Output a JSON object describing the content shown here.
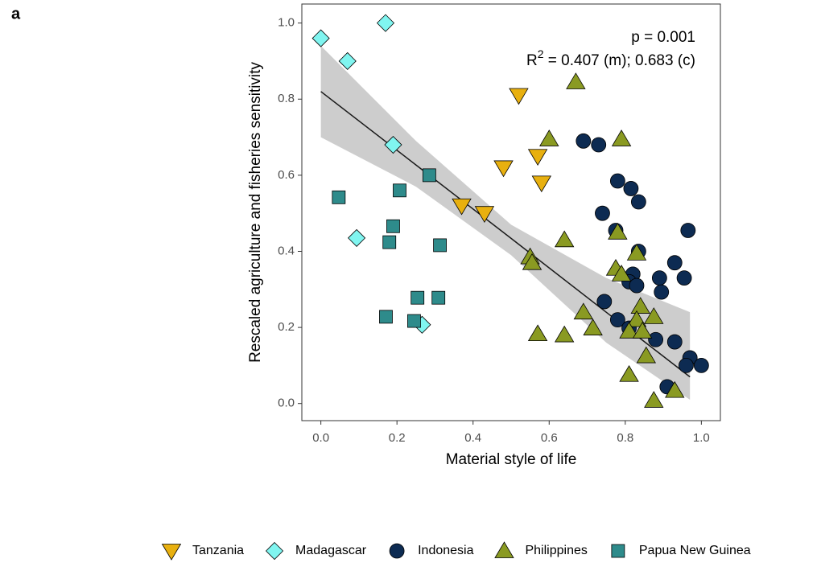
{
  "chart_data": {
    "type": "scatter",
    "panel_label": "a",
    "xlabel": "Material style of life",
    "ylabel": "Rescaled agriculture and fisheries sensitivity",
    "annotation_p": "p = 0.001",
    "annotation_r2": {
      "base": "R",
      "sup": "2",
      "rest": " = 0.407 (m); 0.683 (c)"
    },
    "xlim": [
      -0.05,
      1.05
    ],
    "ylim": [
      -0.045,
      1.05
    ],
    "xticks": [
      {
        "value": 0,
        "label": "0.0"
      },
      0.2,
      0.4,
      0.6,
      0.8,
      {
        "value": 1,
        "label": "1.0"
      }
    ],
    "yticks": [
      {
        "value": 0,
        "label": "0.0"
      },
      0.2,
      0.4,
      0.6,
      0.8,
      {
        "value": 1,
        "label": "1.0"
      }
    ],
    "grid": false,
    "legend_position": "bottom",
    "fit": {
      "color": "#1a1a1a",
      "band_color": "#c8c8c8",
      "x": [
        0,
        0.25,
        0.5,
        0.75,
        0.97
      ],
      "y": [
        0.82,
        0.627,
        0.434,
        0.24,
        0.07
      ],
      "ci_lower": [
        0.7,
        0.57,
        0.39,
        0.16,
        0.01
      ],
      "ci_upper": [
        0.94,
        0.69,
        0.47,
        0.33,
        0.24
      ]
    },
    "series": [
      {
        "name": "Tanzania",
        "color": "#e8b00f",
        "marker": "triangle-down",
        "x": [
          0.52,
          0.48,
          0.57,
          0.58,
          0.37,
          0.43
        ],
        "values": [
          0.81,
          0.62,
          0.65,
          0.58,
          0.52,
          0.5
        ]
      },
      {
        "name": "Madagascar",
        "color": "#80f5f0",
        "marker": "diamond",
        "x": [
          0.0,
          0.07,
          0.17,
          0.19,
          0.094,
          0.266
        ],
        "values": [
          0.96,
          0.9,
          1.0,
          0.68,
          0.435,
          0.207
        ]
      },
      {
        "name": "Indonesia",
        "color": "#0d2b52",
        "marker": "circle",
        "x": [
          0.69,
          0.73,
          0.78,
          0.815,
          0.835,
          0.74,
          0.775,
          0.965,
          0.835,
          0.93,
          0.82,
          0.81,
          0.83,
          0.89,
          0.955,
          0.895,
          0.745,
          0.78,
          0.81,
          0.88,
          0.93,
          0.97,
          0.96,
          1.0,
          0.91
        ],
        "values": [
          0.69,
          0.68,
          0.585,
          0.565,
          0.53,
          0.5,
          0.455,
          0.455,
          0.4,
          0.37,
          0.34,
          0.32,
          0.31,
          0.33,
          0.33,
          0.293,
          0.268,
          0.22,
          0.198,
          0.168,
          0.162,
          0.12,
          0.1,
          0.1,
          0.044
        ]
      },
      {
        "name": "Philippines",
        "color": "#8a9a22",
        "marker": "triangle-up",
        "x": [
          0.67,
          0.6,
          0.79,
          0.64,
          0.78,
          0.83,
          0.775,
          0.55,
          0.555,
          0.79,
          0.69,
          0.84,
          0.83,
          0.875,
          0.715,
          0.57,
          0.64,
          0.81,
          0.845,
          0.855,
          0.81,
          0.93,
          0.875
        ],
        "values": [
          0.845,
          0.695,
          0.695,
          0.43,
          0.45,
          0.395,
          0.355,
          0.385,
          0.37,
          0.34,
          0.24,
          0.255,
          0.22,
          0.228,
          0.198,
          0.183,
          0.18,
          0.19,
          0.19,
          0.125,
          0.076,
          0.034,
          0.008
        ]
      },
      {
        "name": "Papua New Guinea",
        "color": "#2e8b8b",
        "marker": "square",
        "x": [
          0.047,
          0.285,
          0.207,
          0.19,
          0.18,
          0.313,
          0.254,
          0.309,
          0.171,
          0.245
        ],
        "values": [
          0.542,
          0.6,
          0.56,
          0.466,
          0.424,
          0.416,
          0.278,
          0.278,
          0.228,
          0.217
        ]
      }
    ]
  }
}
